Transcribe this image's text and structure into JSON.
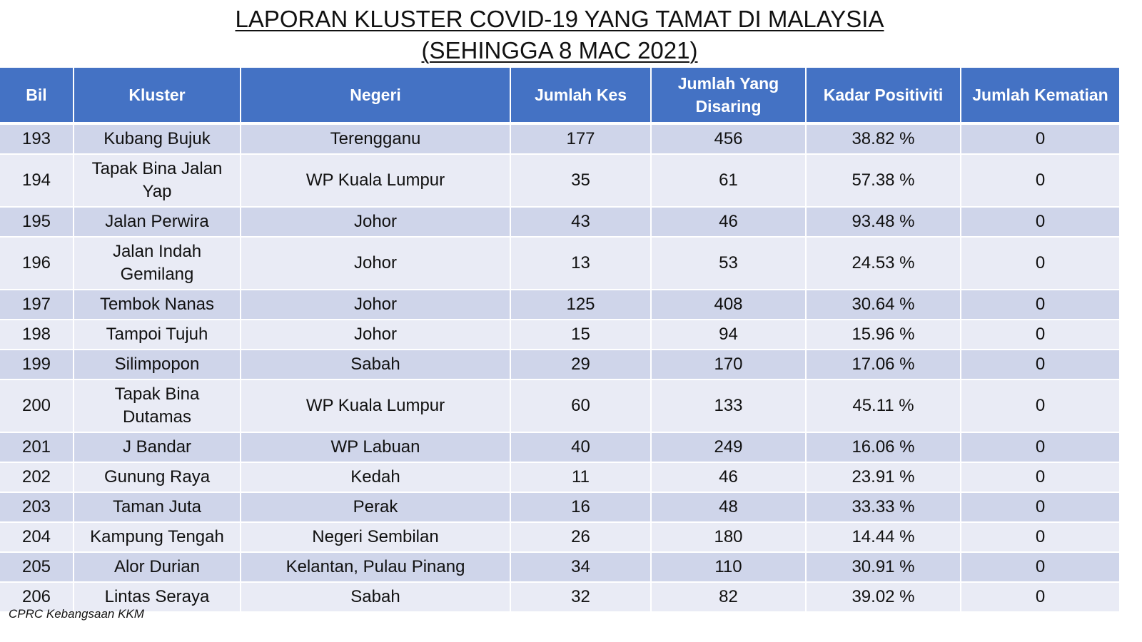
{
  "title": {
    "line1": "LAPORAN KLUSTER COVID-19 YANG TAMAT DI MALAYSIA",
    "line2": "(SEHINGGA  8 MAC 2021)"
  },
  "table": {
    "headers": [
      "Bil",
      "Kluster",
      "Negeri",
      "Jumlah Kes",
      "Jumlah Yang Disaring",
      "Kadar Positiviti",
      "Jumlah Kematian"
    ],
    "rows": [
      {
        "bil": "193",
        "kluster": "Kubang Bujuk",
        "negeri": "Terengganu",
        "kes": "177",
        "disaring": "456",
        "positiviti": "38.82 %",
        "kematian": "0"
      },
      {
        "bil": "194",
        "kluster": "Tapak Bina Jalan Yap",
        "negeri": "WP Kuala Lumpur",
        "kes": "35",
        "disaring": "61",
        "positiviti": "57.38 %",
        "kematian": "0"
      },
      {
        "bil": "195",
        "kluster": "Jalan Perwira",
        "negeri": "Johor",
        "kes": "43",
        "disaring": "46",
        "positiviti": "93.48 %",
        "kematian": "0"
      },
      {
        "bil": "196",
        "kluster": "Jalan Indah Gemilang",
        "negeri": "Johor",
        "kes": "13",
        "disaring": "53",
        "positiviti": "24.53 %",
        "kematian": "0"
      },
      {
        "bil": "197",
        "kluster": "Tembok Nanas",
        "negeri": "Johor",
        "kes": "125",
        "disaring": "408",
        "positiviti": "30.64 %",
        "kematian": "0"
      },
      {
        "bil": "198",
        "kluster": "Tampoi Tujuh",
        "negeri": "Johor",
        "kes": "15",
        "disaring": "94",
        "positiviti": "15.96 %",
        "kematian": "0"
      },
      {
        "bil": "199",
        "kluster": "Silimpopon",
        "negeri": "Sabah",
        "kes": "29",
        "disaring": "170",
        "positiviti": "17.06 %",
        "kematian": "0"
      },
      {
        "bil": "200",
        "kluster": "Tapak Bina Dutamas",
        "negeri": "WP Kuala Lumpur",
        "kes": "60",
        "disaring": "133",
        "positiviti": "45.11 %",
        "kematian": "0"
      },
      {
        "bil": "201",
        "kluster": "J Bandar",
        "negeri": "WP Labuan",
        "kes": "40",
        "disaring": "249",
        "positiviti": "16.06 %",
        "kematian": "0"
      },
      {
        "bil": "202",
        "kluster": "Gunung Raya",
        "negeri": "Kedah",
        "kes": "11",
        "disaring": "46",
        "positiviti": "23.91 %",
        "kematian": "0"
      },
      {
        "bil": "203",
        "kluster": "Taman Juta",
        "negeri": "Perak",
        "kes": "16",
        "disaring": "48",
        "positiviti": "33.33 %",
        "kematian": "0"
      },
      {
        "bil": "204",
        "kluster": "Kampung Tengah",
        "negeri": "Negeri Sembilan",
        "kes": "26",
        "disaring": "180",
        "positiviti": "14.44 %",
        "kematian": "0"
      },
      {
        "bil": "205",
        "kluster": "Alor Durian",
        "negeri": "Kelantan, Pulau Pinang",
        "kes": "34",
        "disaring": "110",
        "positiviti": "30.91 %",
        "kematian": "0"
      },
      {
        "bil": "206",
        "kluster": "Lintas Seraya",
        "negeri": "Sabah",
        "kes": "32",
        "disaring": "82",
        "positiviti": "39.02 %",
        "kematian": "0"
      }
    ]
  },
  "footer": "CPRC Kebangsaan KKM",
  "colors": {
    "header_bg": "#4472c4",
    "row_dark": "#cfd5ea",
    "row_light": "#e9ebf5"
  }
}
